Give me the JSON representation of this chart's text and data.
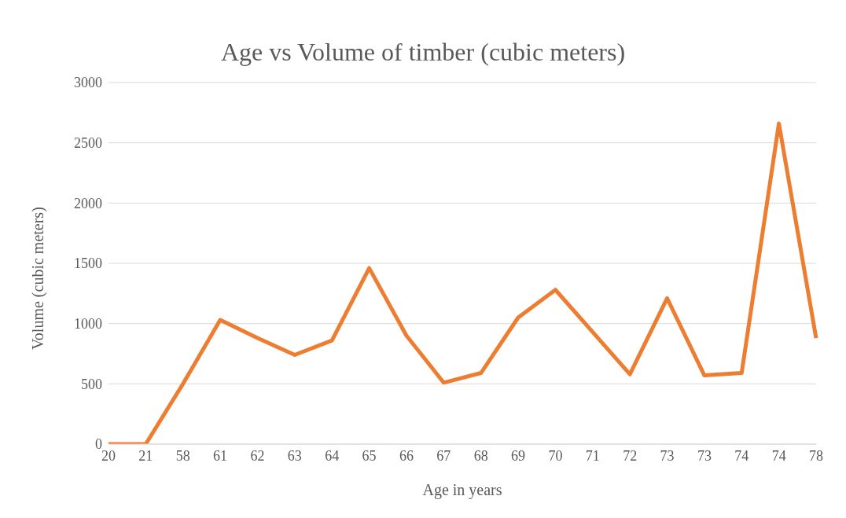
{
  "chart_data": {
    "type": "line",
    "title": "Age vs Volume of timber (cubic meters)",
    "xlabel": "Age in years",
    "ylabel": "Volume (cubic meters)",
    "categories": [
      "20",
      "21",
      "58",
      "61",
      "62",
      "63",
      "64",
      "65",
      "66",
      "67",
      "68",
      "69",
      "70",
      "71",
      "72",
      "73",
      "73",
      "74",
      "74",
      "78"
    ],
    "series": [
      {
        "color": "#ed7d31",
        "values": [
          0,
          0,
          500,
          1030,
          880,
          740,
          860,
          1460,
          900,
          510,
          590,
          1050,
          1280,
          930,
          580,
          1210,
          570,
          590,
          2660,
          880
        ]
      }
    ],
    "ylim": [
      0,
      3000
    ],
    "yticks": [
      0,
      500,
      1000,
      1500,
      2000,
      2500,
      3000
    ],
    "grid": "y",
    "legend": false,
    "marker": "none",
    "line_style": "solid"
  }
}
